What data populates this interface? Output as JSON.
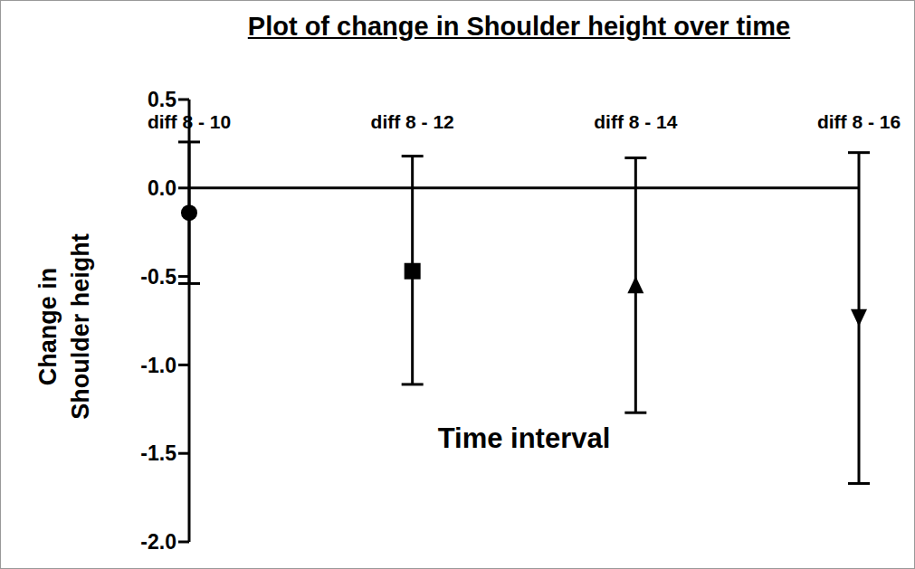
{
  "chart_data": {
    "type": "scatter",
    "title": "Plot of change in Shoulder height over time",
    "y_label": "Change in Shoulder height",
    "annotation": "Time interval",
    "categories": [
      "diff 8 - 10",
      "diff 8 - 12",
      "diff 8 - 14",
      "diff 8 - 16"
    ],
    "color": "#000000",
    "series": [
      {
        "marker": "circle",
        "values": [
          -0.14,
          null,
          null,
          null
        ],
        "error_lower": [
          0.4,
          null,
          null,
          null
        ],
        "error_upper": [
          0.4,
          null,
          null,
          null
        ]
      },
      {
        "marker": "square",
        "values": [
          null,
          -0.47,
          null,
          null
        ],
        "error_lower": [
          null,
          0.64,
          null,
          null
        ],
        "error_upper": [
          null,
          0.65,
          null,
          null
        ]
      },
      {
        "marker": "triangle",
        "values": [
          null,
          null,
          -0.56,
          null
        ],
        "error_lower": [
          null,
          null,
          0.71,
          null
        ],
        "error_upper": [
          null,
          null,
          0.73,
          null
        ]
      },
      {
        "marker": "triangle-down",
        "values": [
          null,
          null,
          null,
          -0.72
        ],
        "error_lower": [
          null,
          null,
          null,
          0.95
        ],
        "error_upper": [
          null,
          null,
          null,
          0.92
        ]
      }
    ],
    "ylim": [
      -2.0,
      0.5
    ],
    "yticks": [
      {
        "value": -2,
        "label": "-2.0"
      },
      {
        "value": -1.5,
        "label": "-1.5"
      },
      {
        "value": -1,
        "label": "-1.0"
      },
      {
        "value": -0.5,
        "label": "-0.5"
      },
      {
        "value": 0,
        "label": "0.0"
      },
      {
        "value": 0.5,
        "label": "0.5"
      }
    ]
  }
}
